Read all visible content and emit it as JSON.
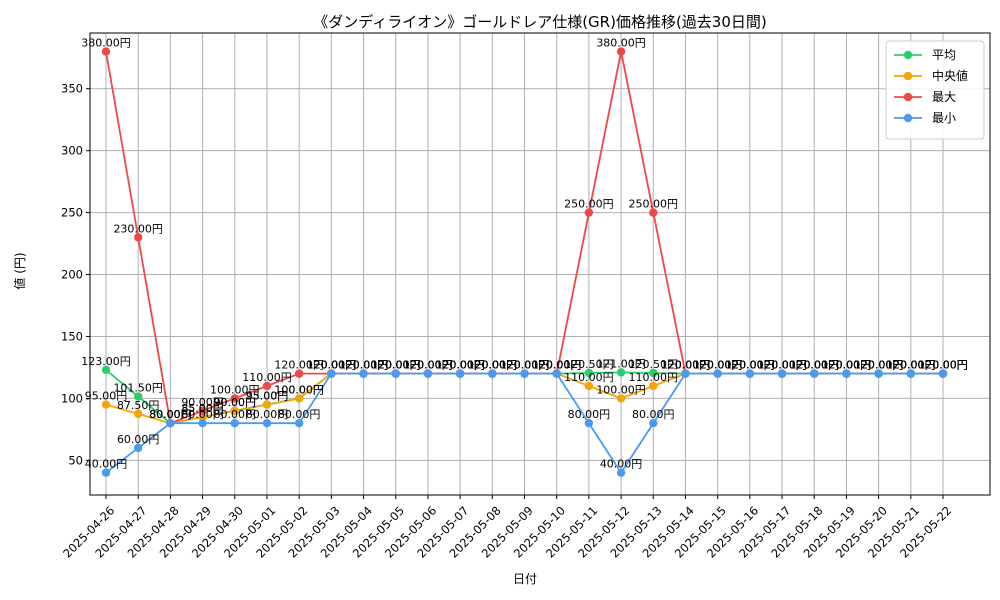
{
  "chart_data": {
    "type": "line",
    "title": "《ダンディライオン》ゴールドレア仕様(GR)価格推移(過去30日間)",
    "xlabel": "日付",
    "ylabel": "値 (円)",
    "ylim": [
      22,
      395
    ],
    "yticks": [
      50,
      100,
      150,
      200,
      250,
      300,
      350
    ],
    "grid": true,
    "legend_position": "top-right",
    "value_suffix": "円",
    "categories": [
      "2025-04-26",
      "2025-04-27",
      "2025-04-28",
      "2025-04-29",
      "2025-04-30",
      "2025-05-01",
      "2025-05-02",
      "2025-05-03",
      "2025-05-04",
      "2025-05-05",
      "2025-05-06",
      "2025-05-07",
      "2025-05-08",
      "2025-05-09",
      "2025-05-10",
      "2025-05-11",
      "2025-05-12",
      "2025-05-13",
      "2025-05-14",
      "2025-05-15",
      "2025-05-16",
      "2025-05-17",
      "2025-05-18",
      "2025-05-19",
      "2025-05-20",
      "2025-05-21",
      "2025-05-22"
    ],
    "series": [
      {
        "name": "平均",
        "color": "#2ecc71",
        "values": [
          123,
          101.5,
          80,
          85,
          90,
          95,
          100,
          120,
          120,
          120,
          120,
          120,
          120,
          120,
          120,
          120.5,
          121,
          120.5,
          120,
          120,
          120,
          120,
          120,
          120,
          120,
          120,
          120
        ]
      },
      {
        "name": "中央値",
        "color": "#f5a30a",
        "values": [
          95,
          87.5,
          80,
          85,
          90,
          95,
          100,
          120,
          120,
          120,
          120,
          120,
          120,
          120,
          120,
          110,
          100,
          110,
          120,
          120,
          120,
          120,
          120,
          120,
          120,
          120,
          120
        ]
      },
      {
        "name": "最大",
        "color": "#f04848",
        "values": [
          380,
          230,
          80,
          90,
          100,
          110,
          120,
          120,
          120,
          120,
          120,
          120,
          120,
          120,
          120,
          250,
          380,
          250,
          120,
          120,
          120,
          120,
          120,
          120,
          120,
          120,
          120
        ]
      },
      {
        "name": "最小",
        "color": "#4a9af0",
        "values": [
          40,
          60,
          80,
          80,
          80,
          80,
          80,
          120,
          120,
          120,
          120,
          120,
          120,
          120,
          120,
          80,
          40,
          80,
          120,
          120,
          120,
          120,
          120,
          120,
          120,
          120,
          120
        ]
      }
    ]
  }
}
